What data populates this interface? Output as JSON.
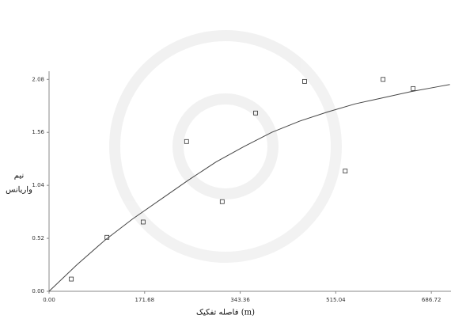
{
  "chart_data": {
    "type": "scatter",
    "xlabel": "فاصله تفکیک (m)",
    "ylabel": [
      "نیم",
      "واریانس"
    ],
    "xlim": [
      0,
      722
    ],
    "ylim": [
      0,
      2.16
    ],
    "xticks": [
      {
        "value": 0,
        "label": "0.00"
      },
      {
        "value": 171.68,
        "label": "171.68"
      },
      {
        "value": 343.36,
        "label": "343.36"
      },
      {
        "value": 515.04,
        "label": "515.04"
      },
      {
        "value": 686.72,
        "label": "686.72"
      }
    ],
    "yticks": [
      {
        "value": 0,
        "label": "0.00"
      },
      {
        "value": 0.52,
        "label": "0.52"
      },
      {
        "value": 1.04,
        "label": "1.04"
      },
      {
        "value": 1.56,
        "label": "1.56"
      },
      {
        "value": 2.08,
        "label": "2.08"
      }
    ],
    "series": [
      {
        "type": "scatter",
        "color": "#333333",
        "x": [
          40,
          104,
          169,
          247,
          311,
          371,
          459,
          532,
          600,
          654
        ],
        "values": [
          0.12,
          0.53,
          0.68,
          1.47,
          0.88,
          1.75,
          2.06,
          1.18,
          2.08,
          1.99
        ]
      },
      {
        "type": "line",
        "color": "#444444",
        "x": [
          0,
          50,
          100,
          150,
          200,
          250,
          300,
          350,
          400,
          450,
          500,
          550,
          600,
          650,
          700,
          720
        ],
        "values": [
          0,
          0.26,
          0.5,
          0.71,
          0.9,
          1.09,
          1.27,
          1.42,
          1.56,
          1.67,
          1.76,
          1.84,
          1.9,
          1.96,
          2.01,
          2.03
        ]
      }
    ]
  }
}
